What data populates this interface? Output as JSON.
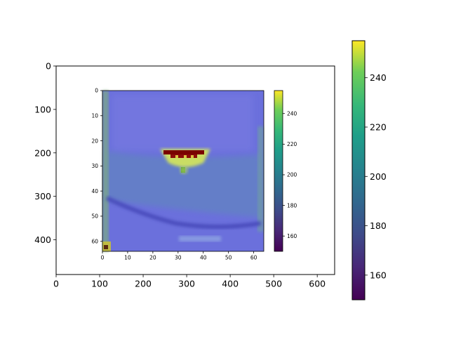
{
  "chart_data": [
    {
      "type": "heatmap",
      "title": "",
      "xlabel": "",
      "ylabel": "",
      "xlim": [
        0,
        640
      ],
      "ylim": [
        480,
        0
      ],
      "xticks": [
        "0",
        "100",
        "200",
        "300",
        "400",
        "500",
        "600"
      ],
      "yticks": [
        "0",
        "100",
        "200",
        "300",
        "400"
      ],
      "colorbar": {
        "range": [
          150,
          255
        ],
        "ticks": [
          "160",
          "180",
          "200",
          "220",
          "240"
        ],
        "colormap": "viridis"
      },
      "content": "screenshot rendered as image; contains an embedded heatmap panel"
    },
    {
      "type": "heatmap",
      "title": "",
      "xlabel": "",
      "ylabel": "",
      "xlim": [
        0,
        64
      ],
      "ylim": [
        64,
        0
      ],
      "xticks": [
        "0",
        "10",
        "20",
        "30",
        "40",
        "50",
        "60"
      ],
      "yticks": [
        "0",
        "10",
        "20",
        "30",
        "40",
        "50",
        "60"
      ],
      "colorbar": {
        "range": [
          150,
          255
        ],
        "ticks": [
          "160",
          "180",
          "200",
          "220",
          "240"
        ],
        "colormap": "viridis"
      }
    }
  ],
  "colors": {
    "viridis_low": "#440154",
    "viridis_mid": "#21918c",
    "viridis_high": "#fde725",
    "image_base": "#6b6fdc",
    "image_edge": "#8fb3a8"
  }
}
